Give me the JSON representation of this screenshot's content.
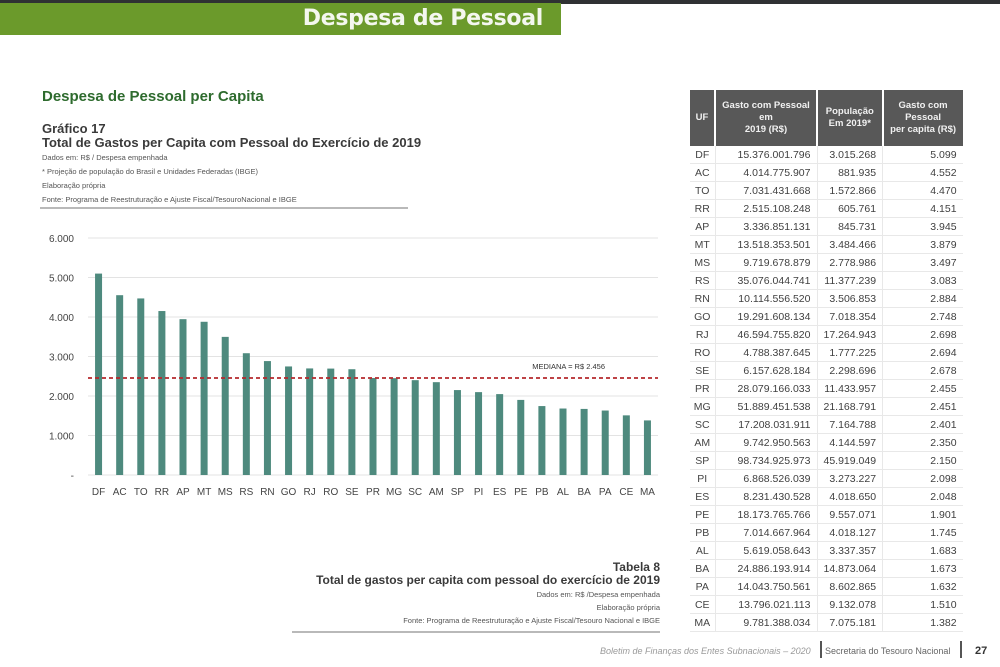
{
  "banner": {
    "title": "Despesa de Pessoal"
  },
  "section_title": "Despesa de Pessoal per Capita",
  "figure": {
    "label": "Gráfico 17",
    "title": "Total de Gastos per Capita com Pessoal do Exercício de 2019",
    "notes": [
      "Dados em: R$ / Despesa empenhada",
      "* Projeção de população do Brasil e Unidades Federadas (IBGE)",
      "Elaboração própria",
      "Fonte: Programa de Reestruturação e Ajuste Fiscal/TesouroNacional e IBGE"
    ]
  },
  "chart_data": {
    "type": "bar",
    "title": "Total de Gastos per Capita com Pessoal do Exercício de 2019",
    "xlabel": "",
    "ylabel": "",
    "ylim": [
      0,
      6000
    ],
    "yticks": [
      0,
      1000,
      2000,
      3000,
      4000,
      5000,
      6000
    ],
    "ytick_labels": [
      "-",
      "1.000",
      "2.000",
      "3.000",
      "4.000",
      "5.000",
      "6.000"
    ],
    "grid": true,
    "categories": [
      "DF",
      "AC",
      "TO",
      "RR",
      "AP",
      "MT",
      "MS",
      "RS",
      "RN",
      "GO",
      "RJ",
      "RO",
      "SE",
      "PR",
      "MG",
      "SC",
      "AM",
      "SP",
      "PI",
      "ES",
      "PE",
      "PB",
      "AL",
      "BA",
      "PA",
      "CE",
      "MA"
    ],
    "values": [
      5099,
      4552,
      4470,
      4151,
      3945,
      3879,
      3497,
      3083,
      2884,
      2748,
      2698,
      2694,
      2678,
      2455,
      2451,
      2401,
      2350,
      2150,
      2098,
      2048,
      1901,
      1745,
      1683,
      1673,
      1632,
      1510,
      1382
    ],
    "bar_color": "#4e8a7e",
    "reference_line": {
      "value": 2456,
      "label": "MEDIANA = R$ 2.456",
      "color": "#b5292c",
      "style": "dashed"
    }
  },
  "table": {
    "caption_number": "Tabela 8",
    "caption_title": "Total de gastos per capita com pessoal do exercício de 2019",
    "caption_notes": [
      "Dados em: R$ /Despesa empenhada",
      "Elaboração própria",
      "Fonte: Programa de Reestruturação e Ajuste Fiscal/Tesouro Nacional e IBGE"
    ],
    "headers": {
      "uf": "UF",
      "gasto_l1": "Gasto com Pessoal",
      "gasto_l2": "em",
      "gasto_l3": "2019 (R$)",
      "pop_l1": "População",
      "pop_l2": "Em 2019*",
      "pc_l1": "Gasto com",
      "pc_l2": "Pessoal",
      "pc_l3": "per capita (R$)"
    },
    "rows": [
      [
        "DF",
        "15.376.001.796",
        "3.015.268",
        "5.099"
      ],
      [
        "AC",
        "4.014.775.907",
        "881.935",
        "4.552"
      ],
      [
        "TO",
        "7.031.431.668",
        "1.572.866",
        "4.470"
      ],
      [
        "RR",
        "2.515.108.248",
        "605.761",
        "4.151"
      ],
      [
        "AP",
        "3.336.851.131",
        "845.731",
        "3.945"
      ],
      [
        "MT",
        "13.518.353.501",
        "3.484.466",
        "3.879"
      ],
      [
        "MS",
        "9.719.678.879",
        "2.778.986",
        "3.497"
      ],
      [
        "RS",
        "35.076.044.741",
        "11.377.239",
        "3.083"
      ],
      [
        "RN",
        "10.114.556.520",
        "3.506.853",
        "2.884"
      ],
      [
        "GO",
        "19.291.608.134",
        "7.018.354",
        "2.748"
      ],
      [
        "RJ",
        "46.594.755.820",
        "17.264.943",
        "2.698"
      ],
      [
        "RO",
        "4.788.387.645",
        "1.777.225",
        "2.694"
      ],
      [
        "SE",
        "6.157.628.184",
        "2.298.696",
        "2.678"
      ],
      [
        "PR",
        "28.079.166.033",
        "11.433.957",
        "2.455"
      ],
      [
        "MG",
        "51.889.451.538",
        "21.168.791",
        "2.451"
      ],
      [
        "SC",
        "17.208.031.911",
        "7.164.788",
        "2.401"
      ],
      [
        "AM",
        "9.742.950.563",
        "4.144.597",
        "2.350"
      ],
      [
        "SP",
        "98.734.925.973",
        "45.919.049",
        "2.150"
      ],
      [
        "PI",
        "6.868.526.039",
        "3.273.227",
        "2.098"
      ],
      [
        "ES",
        "8.231.430.528",
        "4.018.650",
        "2.048"
      ],
      [
        "PE",
        "18.173.765.766",
        "9.557.071",
        "1.901"
      ],
      [
        "PB",
        "7.014.667.964",
        "4.018.127",
        "1.745"
      ],
      [
        "AL",
        "5.619.058.643",
        "3.337.357",
        "1.683"
      ],
      [
        "BA",
        "24.886.193.914",
        "14.873.064",
        "1.673"
      ],
      [
        "PA",
        "14.043.750.561",
        "8.602.865",
        "1.632"
      ],
      [
        "CE",
        "13.796.021.113",
        "9.132.078",
        "1.510"
      ],
      [
        "MA",
        "9.781.388.034",
        "7.075.181",
        "1.382"
      ]
    ]
  },
  "footer": {
    "bulletin": "Boletim de Finanças dos Entes Subnacionais – 2020",
    "organization": "Secretaria do Tesouro Nacional",
    "page": "27"
  }
}
